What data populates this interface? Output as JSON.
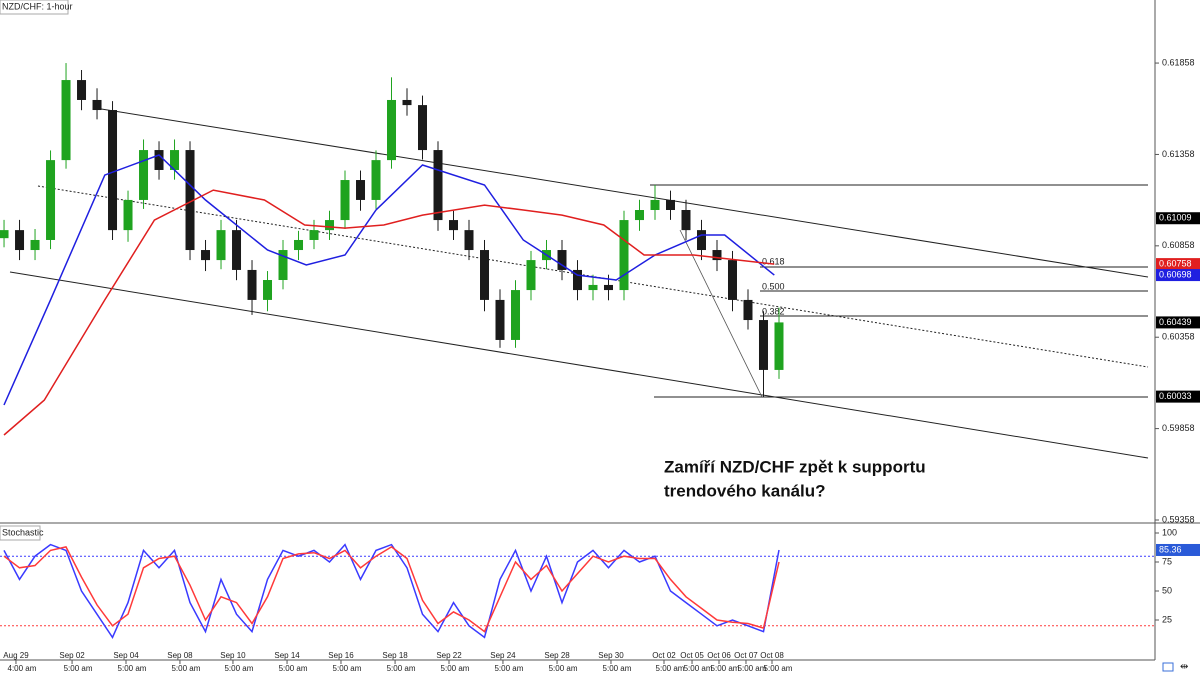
{
  "chart_data": [
    {
      "type": "candlestick",
      "title": "NZD/CHF: 1-hour",
      "annotation": [
        "Zamíří NZD/CHF zpět k supportu",
        "trendového kanálu?"
      ],
      "fib_labels": [
        "0.618",
        "0.500",
        "0.382"
      ],
      "x": [
        0,
        1,
        2,
        3,
        4,
        5,
        6,
        7,
        8,
        9,
        10,
        11,
        12,
        13,
        14,
        15,
        16,
        17,
        18,
        19,
        20,
        21,
        22,
        23,
        24,
        25,
        26,
        27,
        28,
        29,
        30,
        31,
        32,
        33,
        34,
        35,
        36,
        37,
        38,
        39,
        40,
        41,
        42,
        43,
        44,
        45,
        46,
        47,
        48,
        49,
        50
      ],
      "open": [
        0.609,
        0.60944,
        0.60835,
        0.6089,
        0.61327,
        0.61765,
        0.61656,
        0.61601,
        0.60944,
        0.61109,
        0.61382,
        0.61273,
        0.61382,
        0.60835,
        0.6078,
        0.60944,
        0.60726,
        0.60562,
        0.60671,
        0.60835,
        0.6089,
        0.60944,
        0.60999,
        0.61218,
        0.61109,
        0.61327,
        0.61656,
        0.61628,
        0.61382,
        0.60999,
        0.60944,
        0.60835,
        0.60562,
        0.60343,
        0.60616,
        0.6078,
        0.60835,
        0.60726,
        0.60616,
        0.60644,
        0.60616,
        0.60999,
        0.61054,
        0.61109,
        0.61054,
        0.60944,
        0.60835,
        0.6078,
        0.60562,
        0.60452,
        0.60179
      ],
      "high": [
        0.61,
        0.61,
        0.6095,
        0.6138,
        0.61858,
        0.6182,
        0.6172,
        0.6165,
        0.6116,
        0.6144,
        0.6143,
        0.6144,
        0.6143,
        0.6089,
        0.61,
        0.61,
        0.6078,
        0.6072,
        0.6089,
        0.6094,
        0.61,
        0.6105,
        0.6127,
        0.6127,
        0.6138,
        0.6178,
        0.6172,
        0.6168,
        0.6143,
        0.6105,
        0.61,
        0.6089,
        0.6062,
        0.6067,
        0.6083,
        0.6089,
        0.6089,
        0.6078,
        0.607,
        0.607,
        0.6105,
        0.6111,
        0.61191,
        0.6116,
        0.6111,
        0.61,
        0.6089,
        0.6083,
        0.6062,
        0.605,
        0.6052
      ],
      "low": [
        0.6085,
        0.6078,
        0.6078,
        0.6084,
        0.6128,
        0.616,
        0.6155,
        0.6089,
        0.6088,
        0.6106,
        0.6122,
        0.6122,
        0.6078,
        0.6072,
        0.6073,
        0.6067,
        0.6048,
        0.605,
        0.6062,
        0.6078,
        0.6084,
        0.6089,
        0.6095,
        0.6105,
        0.6106,
        0.6128,
        0.6157,
        0.6133,
        0.6094,
        0.6089,
        0.6078,
        0.605,
        0.603,
        0.603,
        0.6056,
        0.6073,
        0.6067,
        0.6056,
        0.6056,
        0.6056,
        0.6056,
        0.6094,
        0.61,
        0.61,
        0.6089,
        0.6078,
        0.6072,
        0.605,
        0.604,
        0.60033,
        0.6013
      ],
      "close": [
        0.60944,
        0.60835,
        0.6089,
        0.61327,
        0.61765,
        0.61656,
        0.61601,
        0.60944,
        0.61109,
        0.61382,
        0.61273,
        0.61382,
        0.60835,
        0.6078,
        0.60944,
        0.60726,
        0.60562,
        0.60671,
        0.60835,
        0.6089,
        0.60944,
        0.60999,
        0.61218,
        0.61109,
        0.61327,
        0.61656,
        0.61628,
        0.61382,
        0.60999,
        0.60944,
        0.60835,
        0.60562,
        0.60343,
        0.60616,
        0.6078,
        0.60835,
        0.60726,
        0.60616,
        0.60644,
        0.60616,
        0.60999,
        0.61054,
        0.61109,
        0.61054,
        0.60944,
        0.60835,
        0.6078,
        0.60562,
        0.60452,
        0.60179,
        0.60439
      ],
      "up_color": "#1fa31f",
      "down_color": "#1a1a1a",
      "series": [
        {
          "color": "#1f1fe0",
          "x": [
            0,
            3,
            6.5,
            10,
            13,
            17,
            19.5,
            22,
            24,
            27,
            31,
            33.5,
            37,
            39.5,
            42,
            45,
            46.5,
            49.7
          ],
          "values": [
            0.59987,
            0.60562,
            0.61245,
            0.61355,
            0.61109,
            0.60835,
            0.60753,
            0.60808,
            0.61054,
            0.613,
            0.61191,
            0.6089,
            0.60698,
            0.60671,
            0.60808,
            0.60917,
            0.60917,
            0.60698
          ]
        },
        {
          "color": "#e01f1f",
          "x": [
            0,
            2.6,
            6.5,
            9.7,
            13.5,
            16.8,
            19.4,
            22,
            24.5,
            27,
            31,
            33.5,
            36,
            38.7,
            41.3,
            44.5,
            49.7
          ],
          "values": [
            0.59823,
            0.60014,
            0.60562,
            0.60999,
            0.61163,
            0.61109,
            0.60972,
            0.60955,
            0.60972,
            0.61026,
            0.61081,
            0.61054,
            0.61026,
            0.60972,
            0.60808,
            0.60808,
            0.60758
          ]
        }
      ],
      "price_tags": [
        {
          "value": 0.61009,
          "color": "#000000"
        },
        {
          "value": 0.60758,
          "color": "#e01f1f"
        },
        {
          "value": 0.60698,
          "color": "#1f1fe0"
        },
        {
          "value": 0.60439,
          "color": "#000000"
        },
        {
          "value": 0.60033,
          "color": "#000000"
        }
      ],
      "xlim": [
        -0.26,
        74.26
      ],
      "ylim": [
        0.59347,
        0.62203
      ],
      "yticks": [
        0.61858,
        0.61358,
        0.60858,
        0.60358,
        0.59858,
        0.59358
      ]
    },
    {
      "type": "line",
      "title": "Stochastic",
      "x": [
        0,
        1,
        2,
        3,
        4,
        5,
        6,
        7,
        8,
        9,
        10,
        11,
        12,
        13,
        14,
        15,
        16,
        17,
        18,
        19,
        20,
        21,
        22,
        23,
        24,
        25,
        26,
        27,
        28,
        29,
        30,
        31,
        32,
        33,
        34,
        35,
        36,
        37,
        38,
        39,
        40,
        41,
        42,
        43,
        44,
        45,
        46,
        47,
        48,
        49,
        50
      ],
      "series": [
        {
          "color": "#3a3aff",
          "values": [
            85,
            60,
            80,
            90,
            85,
            50,
            30,
            10,
            40,
            85,
            70,
            85,
            40,
            15,
            60,
            30,
            15,
            60,
            85,
            80,
            85,
            75,
            90,
            60,
            85,
            90,
            70,
            30,
            15,
            40,
            20,
            10,
            60,
            85,
            50,
            80,
            40,
            75,
            85,
            70,
            85,
            75,
            80,
            50,
            40,
            30,
            20,
            25,
            20,
            15,
            85.36
          ]
        },
        {
          "color": "#ff3a3a",
          "values": [
            80,
            70,
            72,
            85,
            88,
            62,
            38,
            20,
            30,
            70,
            78,
            80,
            55,
            25,
            45,
            40,
            22,
            45,
            78,
            82,
            83,
            78,
            85,
            70,
            80,
            88,
            78,
            42,
            22,
            32,
            25,
            15,
            45,
            75,
            60,
            72,
            50,
            65,
            80,
            75,
            80,
            78,
            78,
            60,
            45,
            35,
            25,
            23,
            22,
            18,
            75
          ]
        }
      ],
      "levels": [
        {
          "value": 80,
          "color": "#3a3aff"
        },
        {
          "value": 20,
          "color": "#ff3a3a"
        }
      ],
      "price_tags": [
        {
          "value": 85.36,
          "color": "#2a5ad8"
        }
      ],
      "xlim": [
        -0.26,
        74.26
      ],
      "ylim": [
        0,
        100
      ],
      "yticks": [
        25,
        50,
        75,
        100
      ],
      "xticks": [
        {
          "value": 0.77,
          "label": "Aug 29"
        },
        {
          "value": 4.39,
          "label": "Sep 02"
        },
        {
          "value": 7.87,
          "label": "Sep 04"
        },
        {
          "value": 11.35,
          "label": "Sep 08"
        },
        {
          "value": 14.77,
          "label": "Sep 10"
        },
        {
          "value": 18.26,
          "label": "Sep 14"
        },
        {
          "value": 21.74,
          "label": "Sep 16"
        },
        {
          "value": 25.23,
          "label": "Sep 18"
        },
        {
          "value": 28.71,
          "label": "Sep 22"
        },
        {
          "value": 32.19,
          "label": "Sep 24"
        },
        {
          "value": 35.68,
          "label": "Sep 28"
        },
        {
          "value": 39.16,
          "label": "Sep 30"
        },
        {
          "value": 42.58,
          "label": "Oct 02"
        },
        {
          "value": 44.39,
          "label": "Oct 05"
        },
        {
          "value": 46.13,
          "label": "Oct 06"
        },
        {
          "value": 47.87,
          "label": "Oct 07"
        },
        {
          "value": 49.55,
          "label": "Oct 08"
        }
      ],
      "xticks_sub": [
        "4:00 am",
        "5:00 am",
        "5:00 am",
        "5:00 am",
        "5:00 am",
        "5:00 am",
        "5:00 am",
        "5:00 am",
        "5:00 am",
        "5:00 am",
        "5:00 am",
        "5:00 am",
        "5:00 am",
        "5:00 am",
        "5:00 am",
        "5:00 am",
        "5:00 am"
      ]
    }
  ]
}
